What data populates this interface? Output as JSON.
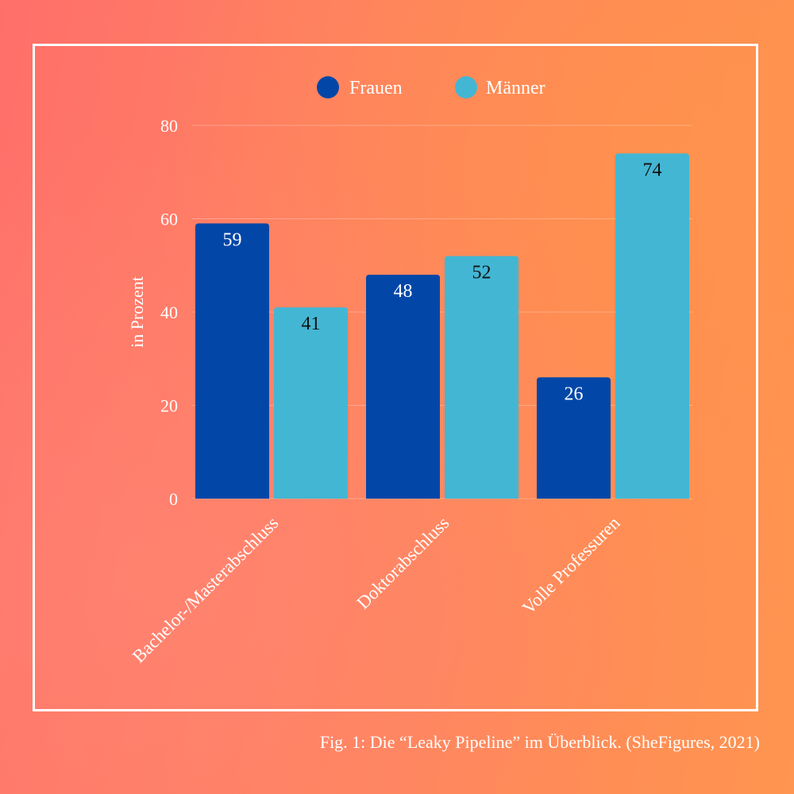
{
  "chart_data": {
    "type": "bar",
    "categories": [
      "Bachelor-/Masterabschluss",
      "Doktorabschluss",
      "Volle Professuren"
    ],
    "series": [
      {
        "name": "Frauen",
        "values": [
          59,
          48,
          26
        ],
        "color": "#0247a8",
        "label_color": "#ffffff"
      },
      {
        "name": "Männer",
        "values": [
          41,
          52,
          74
        ],
        "color": "#43b6d4",
        "label_color": "#111111"
      }
    ],
    "ylabel": "in Prozent",
    "ylim": [
      0,
      80
    ],
    "yticks": [
      0,
      20,
      40,
      60,
      80
    ],
    "grid": true,
    "legend": "top-center"
  },
  "caption": "Fig. 1: Die “Leaky Pipeline” im Überblick. (SheFigures, 2021)"
}
